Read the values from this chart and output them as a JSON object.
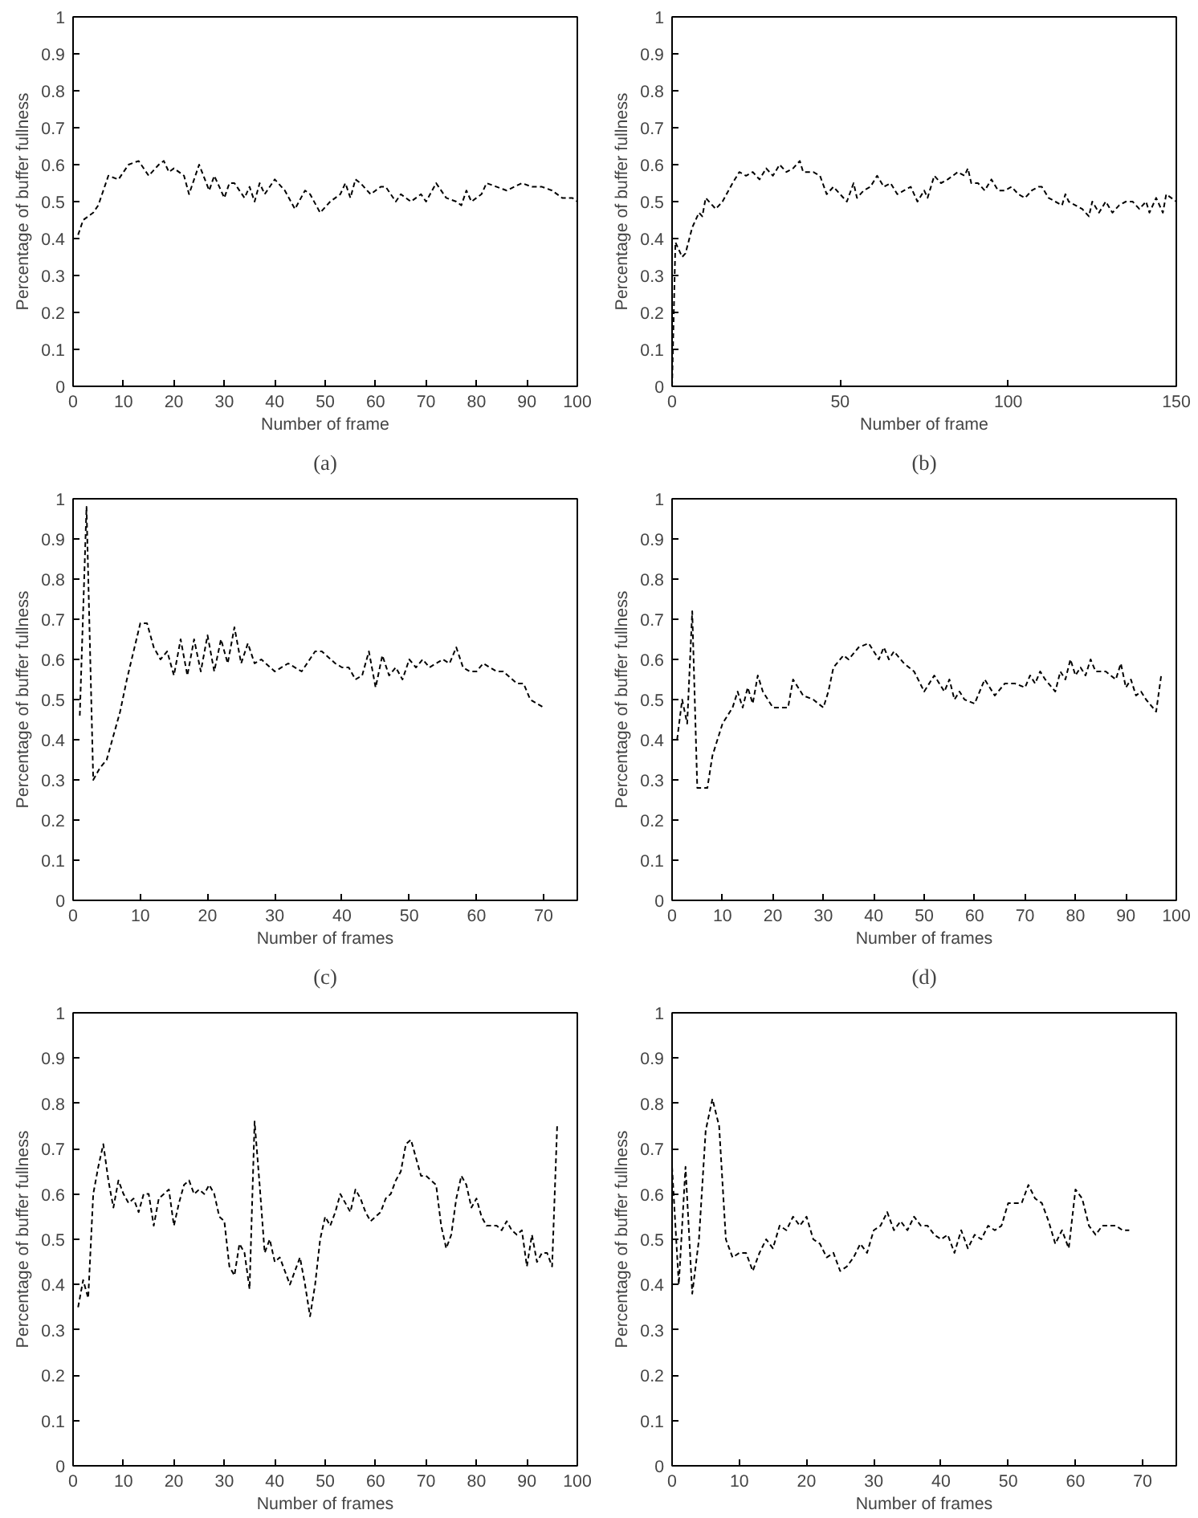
{
  "chart_data": [
    {
      "type": "line",
      "xlabel": "Number of frame",
      "ylabel": "Percentage of buffer fullness",
      "annotations": [
        "(a)"
      ],
      "line_style": "dashed",
      "xlim": [
        0,
        100
      ],
      "xticks": [
        0,
        10,
        20,
        30,
        40,
        50,
        60,
        70,
        80,
        90,
        100
      ],
      "ylim": [
        0,
        1
      ],
      "yticks": [
        0,
        0.1,
        0.2,
        0.3,
        0.4,
        0.5,
        0.6,
        0.7,
        0.8,
        0.9,
        1
      ],
      "x": [
        1,
        2,
        4,
        5,
        7,
        9,
        11,
        13,
        15,
        17,
        18,
        19,
        20,
        22,
        23,
        25,
        27,
        28,
        30,
        31,
        32,
        34,
        35,
        36,
        37,
        38,
        40,
        42,
        44,
        46,
        47,
        49,
        51,
        53,
        54,
        55,
        56,
        57,
        59,
        61,
        62,
        64,
        65,
        67,
        69,
        70,
        72,
        74,
        76,
        77,
        78,
        79,
        81,
        82,
        84,
        86,
        89,
        91,
        93,
        95,
        97,
        99,
        100
      ],
      "series": [
        {
          "color": "#000000",
          "values": [
            0.41,
            0.45,
            0.47,
            0.49,
            0.57,
            0.56,
            0.6,
            0.61,
            0.57,
            0.6,
            0.61,
            0.58,
            0.59,
            0.57,
            0.52,
            0.6,
            0.53,
            0.57,
            0.51,
            0.55,
            0.55,
            0.51,
            0.54,
            0.5,
            0.55,
            0.52,
            0.56,
            0.53,
            0.48,
            0.53,
            0.52,
            0.47,
            0.5,
            0.52,
            0.55,
            0.51,
            0.56,
            0.55,
            0.52,
            0.54,
            0.54,
            0.5,
            0.52,
            0.5,
            0.52,
            0.5,
            0.55,
            0.51,
            0.5,
            0.49,
            0.53,
            0.5,
            0.52,
            0.55,
            0.54,
            0.53,
            0.55,
            0.54,
            0.54,
            0.53,
            0.51,
            0.51,
            0.5
          ]
        }
      ]
    },
    {
      "type": "line",
      "xlabel": "Number of frame",
      "ylabel": "Percentage of buffer fullness",
      "annotations": [
        "(b)"
      ],
      "line_style": "dashed",
      "xlim": [
        0,
        150
      ],
      "xticks": [
        0,
        50,
        100,
        150
      ],
      "ylim": [
        0,
        1
      ],
      "yticks": [
        0,
        0.1,
        0.2,
        0.3,
        0.4,
        0.5,
        0.6,
        0.7,
        0.8,
        0.9,
        1
      ],
      "x": [
        0,
        1,
        3,
        4,
        6,
        8,
        9,
        10,
        13,
        15,
        18,
        20,
        22,
        24,
        26,
        28,
        30,
        32,
        34,
        36,
        38,
        39,
        42,
        44,
        46,
        48,
        50,
        52,
        54,
        55,
        57,
        59,
        61,
        63,
        65,
        67,
        69,
        71,
        73,
        75,
        76,
        78,
        80,
        82,
        85,
        87,
        88,
        89,
        91,
        93,
        95,
        97,
        99,
        101,
        103,
        105,
        107,
        109,
        110,
        112,
        114,
        116,
        117,
        118,
        120,
        122,
        124,
        125,
        127,
        129,
        131,
        133,
        135,
        137,
        139,
        141,
        142,
        144,
        146,
        147,
        150
      ],
      "series": [
        {
          "color": "#000000",
          "values": [
            0.0,
            0.39,
            0.35,
            0.36,
            0.43,
            0.47,
            0.46,
            0.51,
            0.48,
            0.5,
            0.55,
            0.58,
            0.57,
            0.58,
            0.56,
            0.59,
            0.57,
            0.6,
            0.58,
            0.59,
            0.61,
            0.58,
            0.58,
            0.57,
            0.52,
            0.54,
            0.52,
            0.5,
            0.55,
            0.51,
            0.53,
            0.54,
            0.57,
            0.54,
            0.55,
            0.52,
            0.53,
            0.54,
            0.5,
            0.53,
            0.51,
            0.57,
            0.55,
            0.56,
            0.58,
            0.57,
            0.59,
            0.55,
            0.55,
            0.53,
            0.56,
            0.53,
            0.53,
            0.54,
            0.52,
            0.51,
            0.53,
            0.54,
            0.54,
            0.51,
            0.5,
            0.49,
            0.52,
            0.5,
            0.49,
            0.48,
            0.46,
            0.5,
            0.47,
            0.5,
            0.47,
            0.49,
            0.5,
            0.5,
            0.48,
            0.5,
            0.47,
            0.51,
            0.47,
            0.52,
            0.5
          ]
        }
      ]
    },
    {
      "type": "line",
      "xlabel": "Number of frames",
      "ylabel": "Percentage of buffer fullness",
      "annotations": [
        "(c)"
      ],
      "line_style": "dashed",
      "xlim": [
        0,
        75
      ],
      "xticks": [
        0,
        10,
        20,
        30,
        40,
        50,
        60,
        70
      ],
      "ylim": [
        0,
        1
      ],
      "yticks": [
        0,
        0.1,
        0.2,
        0.3,
        0.4,
        0.5,
        0.6,
        0.7,
        0.8,
        0.9,
        1
      ],
      "x": [
        1,
        2,
        3,
        4,
        5,
        7,
        8,
        10,
        11,
        12,
        13,
        14,
        15,
        16,
        17,
        18,
        19,
        20,
        21,
        22,
        23,
        24,
        25,
        26,
        27,
        28,
        30,
        32,
        34,
        36,
        37,
        39,
        40,
        41,
        42,
        43,
        44,
        45,
        46,
        47,
        48,
        49,
        50,
        51,
        52,
        53,
        55,
        56,
        57,
        58,
        59,
        60,
        61,
        62,
        63,
        64,
        66,
        67,
        68,
        70
      ],
      "series": [
        {
          "color": "#000000",
          "values": [
            0.46,
            0.98,
            0.3,
            0.33,
            0.35,
            0.47,
            0.55,
            0.69,
            0.69,
            0.63,
            0.6,
            0.62,
            0.56,
            0.65,
            0.56,
            0.65,
            0.57,
            0.66,
            0.57,
            0.65,
            0.59,
            0.68,
            0.59,
            0.64,
            0.59,
            0.6,
            0.57,
            0.59,
            0.57,
            0.62,
            0.62,
            0.59,
            0.58,
            0.58,
            0.55,
            0.56,
            0.62,
            0.53,
            0.61,
            0.56,
            0.58,
            0.55,
            0.6,
            0.58,
            0.6,
            0.58,
            0.6,
            0.59,
            0.63,
            0.58,
            0.57,
            0.57,
            0.59,
            0.58,
            0.57,
            0.57,
            0.54,
            0.54,
            0.5,
            0.48
          ]
        }
      ]
    },
    {
      "type": "line",
      "xlabel": "Number of frames",
      "ylabel": "Percentage of buffer fullness",
      "annotations": [
        "(d)"
      ],
      "line_style": "dashed",
      "xlim": [
        0,
        100
      ],
      "xticks": [
        0,
        10,
        20,
        30,
        40,
        50,
        60,
        70,
        80,
        90,
        100
      ],
      "ylim": [
        0,
        1
      ],
      "yticks": [
        0,
        0.1,
        0.2,
        0.3,
        0.4,
        0.5,
        0.6,
        0.7,
        0.8,
        0.9,
        1
      ],
      "x": [
        1,
        2,
        3,
        4,
        5,
        6,
        7,
        8,
        10,
        12,
        13,
        14,
        15,
        16,
        17,
        18,
        20,
        22,
        23,
        24,
        26,
        28,
        30,
        31,
        32,
        34,
        35,
        37,
        39,
        41,
        42,
        43,
        44,
        46,
        48,
        50,
        52,
        54,
        55,
        56,
        57,
        58,
        60,
        62,
        64,
        66,
        68,
        70,
        71,
        72,
        73,
        74,
        76,
        77,
        78,
        79,
        80,
        81,
        82,
        83,
        84,
        86,
        88,
        89,
        90,
        91,
        92,
        93,
        94,
        96,
        97
      ],
      "series": [
        {
          "color": "#000000",
          "values": [
            0.4,
            0.5,
            0.44,
            0.72,
            0.28,
            0.28,
            0.28,
            0.36,
            0.44,
            0.48,
            0.52,
            0.48,
            0.53,
            0.49,
            0.56,
            0.52,
            0.48,
            0.48,
            0.48,
            0.55,
            0.51,
            0.5,
            0.48,
            0.52,
            0.58,
            0.61,
            0.6,
            0.63,
            0.64,
            0.6,
            0.63,
            0.6,
            0.62,
            0.59,
            0.57,
            0.52,
            0.56,
            0.52,
            0.55,
            0.5,
            0.52,
            0.5,
            0.49,
            0.55,
            0.51,
            0.54,
            0.54,
            0.53,
            0.56,
            0.54,
            0.57,
            0.55,
            0.52,
            0.57,
            0.55,
            0.6,
            0.56,
            0.58,
            0.56,
            0.6,
            0.57,
            0.57,
            0.55,
            0.59,
            0.53,
            0.55,
            0.51,
            0.52,
            0.5,
            0.47,
            0.56
          ]
        }
      ]
    },
    {
      "type": "line",
      "xlabel": "Number of frames",
      "ylabel": "Percentage of buffer fullness",
      "line_style": "dashed",
      "xlim": [
        0,
        100
      ],
      "xticks": [
        0,
        10,
        20,
        30,
        40,
        50,
        60,
        70,
        80,
        90,
        100
      ],
      "ylim": [
        0,
        1
      ],
      "yticks": [
        0,
        0.1,
        0.2,
        0.3,
        0.4,
        0.5,
        0.6,
        0.7,
        0.8,
        0.9,
        1
      ],
      "x": [
        1,
        2,
        3,
        4,
        5,
        6,
        7,
        8,
        9,
        10,
        11,
        12,
        13,
        14,
        15,
        16,
        17,
        19,
        20,
        21,
        22,
        23,
        24,
        25,
        26,
        27,
        28,
        29,
        30,
        31,
        32,
        33,
        34,
        35,
        36,
        37,
        38,
        39,
        40,
        41,
        42,
        43,
        44,
        45,
        46,
        47,
        48,
        49,
        50,
        51,
        52,
        53,
        54,
        55,
        56,
        57,
        58,
        59,
        60,
        61,
        62,
        63,
        64,
        65,
        66,
        67,
        68,
        69,
        70,
        71,
        72,
        73,
        74,
        75,
        76,
        77,
        78,
        79,
        80,
        81,
        82,
        83,
        84,
        85,
        86,
        87,
        88,
        89,
        90,
        91,
        92,
        93,
        94,
        95,
        96
      ],
      "series": [
        {
          "color": "#000000",
          "values": [
            0.35,
            0.41,
            0.37,
            0.6,
            0.66,
            0.71,
            0.63,
            0.57,
            0.63,
            0.6,
            0.58,
            0.59,
            0.56,
            0.6,
            0.6,
            0.53,
            0.59,
            0.61,
            0.53,
            0.58,
            0.62,
            0.63,
            0.6,
            0.61,
            0.6,
            0.62,
            0.6,
            0.55,
            0.54,
            0.44,
            0.42,
            0.49,
            0.47,
            0.39,
            0.76,
            0.62,
            0.47,
            0.5,
            0.45,
            0.46,
            0.43,
            0.4,
            0.43,
            0.46,
            0.4,
            0.33,
            0.4,
            0.5,
            0.55,
            0.53,
            0.56,
            0.6,
            0.58,
            0.56,
            0.61,
            0.59,
            0.56,
            0.54,
            0.55,
            0.56,
            0.59,
            0.6,
            0.63,
            0.65,
            0.71,
            0.72,
            0.68,
            0.64,
            0.64,
            0.63,
            0.62,
            0.53,
            0.48,
            0.51,
            0.59,
            0.64,
            0.62,
            0.57,
            0.59,
            0.55,
            0.53,
            0.53,
            0.53,
            0.52,
            0.54,
            0.52,
            0.51,
            0.52,
            0.44,
            0.51,
            0.45,
            0.47,
            0.47,
            0.44,
            0.75
          ]
        }
      ]
    },
    {
      "type": "line",
      "xlabel": "Number of frames",
      "ylabel": "Percentage of buffer fullness",
      "line_style": "dashed",
      "xlim": [
        0,
        75
      ],
      "xticks": [
        0,
        10,
        20,
        30,
        40,
        50,
        60,
        70
      ],
      "ylim": [
        0,
        1
      ],
      "yticks": [
        0,
        0.1,
        0.2,
        0.3,
        0.4,
        0.5,
        0.6,
        0.7,
        0.8,
        0.9,
        1
      ],
      "x": [
        0,
        1,
        2,
        3,
        4,
        5,
        6,
        7,
        8,
        9,
        10,
        11,
        12,
        13,
        14,
        15,
        16,
        17,
        18,
        19,
        20,
        21,
        22,
        23,
        24,
        25,
        26,
        27,
        28,
        29,
        30,
        31,
        32,
        33,
        34,
        35,
        36,
        37,
        38,
        39,
        40,
        41,
        42,
        43,
        44,
        45,
        46,
        47,
        48,
        49,
        50,
        51,
        52,
        53,
        54,
        55,
        56,
        57,
        58,
        59,
        60,
        61,
        62,
        63,
        64,
        65,
        66,
        67,
        68
      ],
      "series": [
        {
          "color": "#000000",
          "values": [
            0.66,
            0.4,
            0.66,
            0.38,
            0.5,
            0.74,
            0.81,
            0.75,
            0.5,
            0.46,
            0.47,
            0.47,
            0.43,
            0.47,
            0.5,
            0.48,
            0.53,
            0.52,
            0.55,
            0.53,
            0.55,
            0.5,
            0.49,
            0.46,
            0.47,
            0.43,
            0.44,
            0.46,
            0.49,
            0.47,
            0.52,
            0.53,
            0.56,
            0.52,
            0.54,
            0.52,
            0.55,
            0.53,
            0.53,
            0.51,
            0.5,
            0.51,
            0.47,
            0.52,
            0.48,
            0.51,
            0.5,
            0.53,
            0.52,
            0.53,
            0.58,
            0.58,
            0.58,
            0.62,
            0.59,
            0.58,
            0.54,
            0.49,
            0.52,
            0.48,
            0.61,
            0.59,
            0.53,
            0.51,
            0.53,
            0.53,
            0.53,
            0.52,
            0.52
          ]
        }
      ]
    }
  ]
}
